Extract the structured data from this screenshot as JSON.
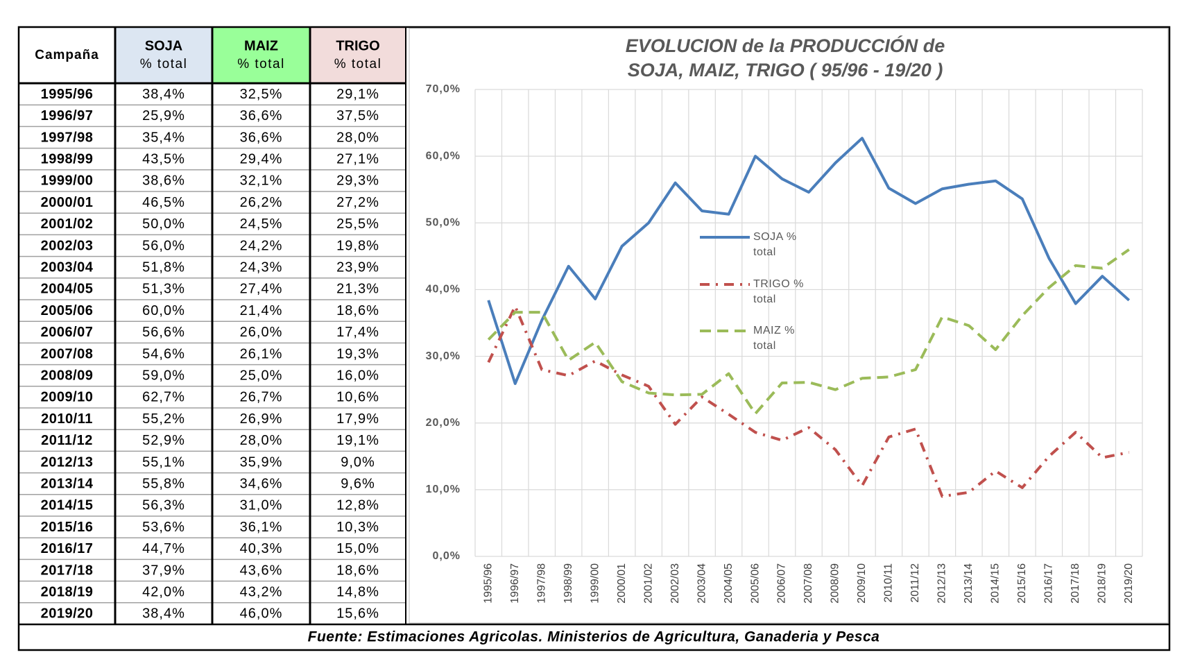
{
  "table": {
    "header": [
      {
        "title": "Campaña"
      },
      {
        "title": "SOJA",
        "sub": "% total"
      },
      {
        "title": "MAIZ",
        "sub": "% total"
      },
      {
        "title": "TRIGO",
        "sub": "% total"
      }
    ],
    "rows": [
      [
        "1995/96",
        "38,4%",
        "32,5%",
        "29,1%"
      ],
      [
        "1996/97",
        "25,9%",
        "36,6%",
        "37,5%"
      ],
      [
        "1997/98",
        "35,4%",
        "36,6%",
        "28,0%"
      ],
      [
        "1998/99",
        "43,5%",
        "29,4%",
        "27,1%"
      ],
      [
        "1999/00",
        "38,6%",
        "32,1%",
        "29,3%"
      ],
      [
        "2000/01",
        "46,5%",
        "26,2%",
        "27,2%"
      ],
      [
        "2001/02",
        "50,0%",
        "24,5%",
        "25,5%"
      ],
      [
        "2002/03",
        "56,0%",
        "24,2%",
        "19,8%"
      ],
      [
        "2003/04",
        "51,8%",
        "24,3%",
        "23,9%"
      ],
      [
        "2004/05",
        "51,3%",
        "27,4%",
        "21,3%"
      ],
      [
        "2005/06",
        "60,0%",
        "21,4%",
        "18,6%"
      ],
      [
        "2006/07",
        "56,6%",
        "26,0%",
        "17,4%"
      ],
      [
        "2007/08",
        "54,6%",
        "26,1%",
        "19,3%"
      ],
      [
        "2008/09",
        "59,0%",
        "25,0%",
        "16,0%"
      ],
      [
        "2009/10",
        "62,7%",
        "26,7%",
        "10,6%"
      ],
      [
        "2010/11",
        "55,2%",
        "26,9%",
        "17,9%"
      ],
      [
        "2011/12",
        "52,9%",
        "28,0%",
        "19,1%"
      ],
      [
        "2012/13",
        "55,1%",
        "35,9%",
        "9,0%"
      ],
      [
        "2013/14",
        "55,8%",
        "34,6%",
        "9,6%"
      ],
      [
        "2014/15",
        "56,3%",
        "31,0%",
        "12,8%"
      ],
      [
        "2015/16",
        "53,6%",
        "36,1%",
        "10,3%"
      ],
      [
        "2016/17",
        "44,7%",
        "40,3%",
        "15,0%"
      ],
      [
        "2017/18",
        "37,9%",
        "43,6%",
        "18,6%"
      ],
      [
        "2018/19",
        "42,0%",
        "43,2%",
        "14,8%"
      ],
      [
        "2019/20",
        "38,4%",
        "46,0%",
        "15,6%"
      ]
    ]
  },
  "footer": "Fuente: Estimaciones Agricolas. Ministerios de Agricultura, Ganaderia y Pesca",
  "chart_data": {
    "type": "line",
    "title": [
      "EVOLUCION de la PRODUCCIÓN de",
      "SOJA, MAIZ, TRIGO ( 95/96 -  19/20 )"
    ],
    "categories": [
      "1995/96",
      "1996/97",
      "1997/98",
      "1998/99",
      "1999/00",
      "2000/01",
      "2001/02",
      "2002/03",
      "2003/04",
      "2004/05",
      "2005/06",
      "2006/07",
      "2007/08",
      "2008/09",
      "2009/10",
      "2010/11",
      "2011/12",
      "2012/13",
      "2013/14",
      "2014/15",
      "2015/16",
      "2016/17",
      "2017/18",
      "2018/19",
      "2019/20"
    ],
    "series": [
      {
        "name": "SOJA % total",
        "color": "#4a7ebb",
        "dash": "none",
        "values": [
          38.4,
          25.9,
          35.4,
          43.5,
          38.6,
          46.5,
          50.0,
          56.0,
          51.8,
          51.3,
          60.0,
          56.6,
          54.6,
          59.0,
          62.7,
          55.2,
          52.9,
          55.1,
          55.8,
          56.3,
          53.6,
          44.7,
          37.9,
          42.0,
          38.4
        ]
      },
      {
        "name": "TRIGO % total",
        "color": "#c0504d",
        "dash": "14 9 3 9",
        "values": [
          29.1,
          37.5,
          28.0,
          27.1,
          29.3,
          27.2,
          25.5,
          19.8,
          23.9,
          21.3,
          18.6,
          17.4,
          19.3,
          16.0,
          10.6,
          17.9,
          19.1,
          9.0,
          9.6,
          12.8,
          10.3,
          15.0,
          18.6,
          14.8,
          15.6
        ]
      },
      {
        "name": "MAIZ % total",
        "color": "#9bbb59",
        "dash": "16 9",
        "values": [
          32.5,
          36.6,
          36.6,
          29.4,
          32.1,
          26.2,
          24.5,
          24.2,
          24.3,
          27.4,
          21.4,
          26.0,
          26.1,
          25.0,
          26.7,
          26.9,
          28.0,
          35.9,
          34.6,
          31.0,
          36.1,
          40.3,
          43.6,
          43.2,
          46.0
        ]
      }
    ],
    "ylim": [
      0,
      70
    ],
    "yticks": [
      {
        "value": 0,
        "label": "0,0%"
      },
      {
        "value": 10,
        "label": "10,0%"
      },
      {
        "value": 20,
        "label": "20,0%"
      },
      {
        "value": 30,
        "label": "30,0%"
      },
      {
        "value": 40,
        "label": "40,0%"
      },
      {
        "value": 50,
        "label": "50,0%"
      },
      {
        "value": 60,
        "label": "60,0%"
      },
      {
        "value": 70,
        "label": "70,0%"
      }
    ],
    "grid": true
  }
}
